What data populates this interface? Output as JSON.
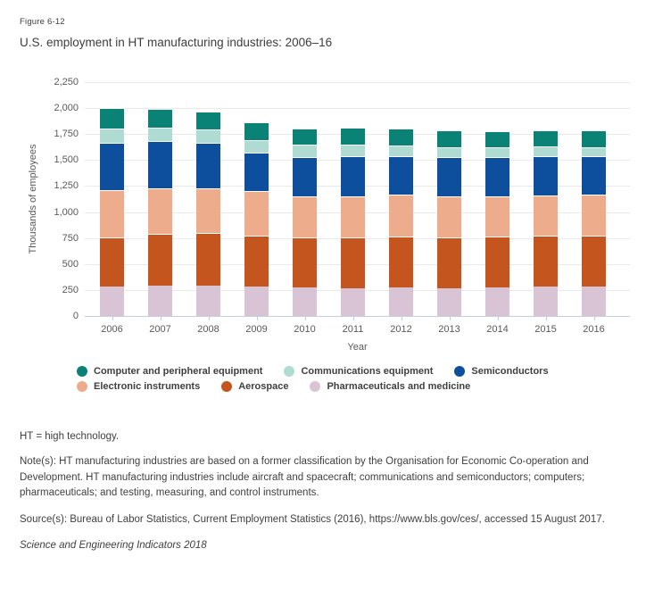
{
  "figure_label": "Figure 6-12",
  "title": "U.S. employment in HT manufacturing industries: 2006–16",
  "chart_data": {
    "type": "bar",
    "stacked": true,
    "title": "U.S. employment in HT manufacturing industries: 2006–16",
    "xlabel": "Year",
    "ylabel": "Thousands of employees",
    "ylim": [
      0,
      2250
    ],
    "grid": true,
    "legend_position": "bottom",
    "yticks": [
      {
        "value": 0,
        "label": "0"
      },
      {
        "value": 250,
        "label": "250"
      },
      {
        "value": 500,
        "label": "500"
      },
      {
        "value": 750,
        "label": "750"
      },
      {
        "value": 1000,
        "label": "1,000"
      },
      {
        "value": 1250,
        "label": "1,250"
      },
      {
        "value": 1500,
        "label": "1,500"
      },
      {
        "value": 1750,
        "label": "1,750"
      },
      {
        "value": 2000,
        "label": "2,000"
      },
      {
        "value": 2250,
        "label": "2,250"
      }
    ],
    "categories": [
      "2006",
      "2007",
      "2008",
      "2009",
      "2010",
      "2011",
      "2012",
      "2013",
      "2014",
      "2015",
      "2016"
    ],
    "series": [
      {
        "name": "Pharmaceuticals and medicine",
        "color": "#d9c4d5",
        "values": [
          285,
          295,
          290,
          285,
          275,
          270,
          275,
          270,
          275,
          285,
          280
        ]
      },
      {
        "name": "Aerospace",
        "color": "#c4551f",
        "values": [
          475,
          495,
          510,
          485,
          480,
          485,
          490,
          490,
          490,
          485,
          495
        ]
      },
      {
        "name": "Electronic instruments",
        "color": "#edad8d",
        "values": [
          450,
          435,
          430,
          435,
          400,
          395,
          400,
          395,
          385,
          390,
          395
        ]
      },
      {
        "name": "Semiconductors",
        "color": "#0d4f9c",
        "values": [
          460,
          455,
          440,
          365,
          375,
          385,
          375,
          375,
          380,
          380,
          370
        ]
      },
      {
        "name": "Communications equipment",
        "color": "#b0dbd3",
        "values": [
          135,
          130,
          125,
          125,
          120,
          115,
          100,
          95,
          90,
          90,
          85
        ]
      },
      {
        "name": "Computer and peripheral equipment",
        "color": "#0a8276",
        "values": [
          195,
          180,
          175,
          170,
          150,
          160,
          165,
          165,
          155,
          160,
          165
        ]
      }
    ]
  },
  "legend": {
    "rows": [
      [
        {
          "label": "Computer and peripheral equipment",
          "color": "#0a8276"
        },
        {
          "label": "Communications equipment",
          "color": "#b0dbd3"
        },
        {
          "label": "Semiconductors",
          "color": "#0d4f9c"
        }
      ],
      [
        {
          "label": "Electronic instruments",
          "color": "#edad8d"
        },
        {
          "label": "Aerospace",
          "color": "#c4551f"
        },
        {
          "label": "Pharmaceuticals and medicine",
          "color": "#d9c4d5"
        }
      ]
    ]
  },
  "notes": {
    "abbreviation": "HT = high technology.",
    "note": "Note(s): HT manufacturing industries are based on a former classification by the Organisation for Economic Co-operation and Development. HT manufacturing industries include aircraft and spacecraft; communications and semiconductors; computers; pharmaceuticals; and testing, measuring, and control instruments.",
    "source": "Source(s): Bureau of Labor Statistics, Current Employment Statistics (2016), https://www.bls.gov/ces/, accessed 15 August 2017.",
    "publication": "Science and Engineering Indicators 2018"
  },
  "colors": {
    "gridline": "#e9e9e9",
    "axis_line": "#c4cde7",
    "tick_text": "#595959",
    "body_text": "#404040"
  }
}
